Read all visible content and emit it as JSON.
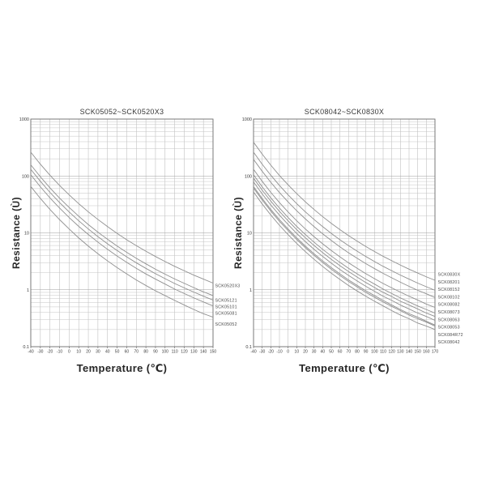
{
  "page": {
    "background": "#ffffff"
  },
  "chart_data": [
    {
      "type": "line",
      "title": "SCK05052~SCK0520X3",
      "xlabel": "Temperature (℃)",
      "ylabel": "Resistance (Ù)",
      "yscale": "log",
      "grid": true,
      "legend_position": "right-of-plot",
      "line_color": "#8f8f8f",
      "xlim": [
        -40,
        150
      ],
      "ylim": [
        0.1,
        1000
      ],
      "x": [
        -40,
        -30,
        -20,
        -10,
        0,
        10,
        20,
        30,
        40,
        50,
        60,
        70,
        80,
        90,
        100,
        110,
        120,
        130,
        140,
        150
      ],
      "xtick_labels": [
        "-40",
        "-30",
        "-20",
        "-10",
        "0",
        "10",
        "20",
        "30",
        "40",
        "50",
        "60",
        "70",
        "80",
        "90",
        "100",
        "110",
        "120",
        "130",
        "140",
        "150"
      ],
      "ytick_values": [
        1000,
        100,
        10,
        1,
        0.1
      ],
      "ytick_labels": [
        "1000",
        "100",
        "10",
        "1",
        "0.1"
      ],
      "series": [
        {
          "name": "SCK0520X3",
          "r25_ohm": 20,
          "values": [
            262,
            161,
            103,
            68.2,
            46.6,
            32.6,
            23.4,
            17.2,
            12.9,
            9.8,
            7.58,
            5.96,
            4.76,
            3.84,
            3.14,
            2.58,
            2.16,
            1.81,
            1.54,
            1.31
          ]
        },
        {
          "name": "SCK05121",
          "r25_ohm": 12,
          "values": [
            157,
            96.7,
            61.8,
            40.9,
            28.0,
            19.6,
            14.0,
            10.3,
            7.72,
            5.88,
            4.55,
            3.58,
            2.86,
            2.3,
            1.88,
            1.55,
            1.3,
            1.09,
            0.92,
            0.79
          ]
        },
        {
          "name": "SCK05101",
          "r25_ohm": 10,
          "values": [
            131,
            80.6,
            51.5,
            34.1,
            23.3,
            16.3,
            11.7,
            8.59,
            6.43,
            4.9,
            3.79,
            2.98,
            2.38,
            1.92,
            1.57,
            1.29,
            1.08,
            0.91,
            0.77,
            0.66
          ]
        },
        {
          "name": "SCK05081",
          "r25_ohm": 8,
          "values": [
            105,
            64.5,
            41.2,
            27.3,
            18.6,
            13.0,
            9.36,
            6.87,
            5.14,
            3.92,
            3.03,
            2.38,
            1.9,
            1.54,
            1.26,
            1.03,
            0.86,
            0.72,
            0.61,
            0.52
          ]
        },
        {
          "name": "SCK05052",
          "r25_ohm": 5,
          "values": [
            65.4,
            40.3,
            25.8,
            17.1,
            11.7,
            8.15,
            5.85,
            4.3,
            3.22,
            2.45,
            1.9,
            1.49,
            1.19,
            0.96,
            0.79,
            0.65,
            0.54,
            0.45,
            0.38,
            0.33
          ]
        }
      ]
    },
    {
      "type": "line",
      "title": "SCK08042~SCK0830X",
      "xlabel": "Temperature (℃)",
      "ylabel": "Resistance (Ù)",
      "yscale": "log",
      "grid": true,
      "legend_position": "right-of-plot",
      "line_color": "#8f8f8f",
      "xlim": [
        -40,
        170
      ],
      "ylim": [
        0.1,
        1000
      ],
      "x": [
        -40,
        -30,
        -20,
        -10,
        0,
        10,
        20,
        30,
        40,
        50,
        60,
        70,
        80,
        90,
        100,
        110,
        120,
        130,
        140,
        150,
        160,
        170
      ],
      "xtick_labels": [
        "-40",
        "-30",
        "-20",
        "-10",
        "0",
        "10",
        "20",
        "30",
        "40",
        "50",
        "60",
        "70",
        "80",
        "90",
        "100",
        "110",
        "120",
        "130",
        "140",
        "150",
        "160",
        "170"
      ],
      "ytick_values": [
        1000,
        100,
        10,
        1,
        0.1
      ],
      "ytick_labels": [
        "1000",
        "100",
        "10",
        "1",
        "0.1"
      ],
      "series": [
        {
          "name": "SCK0830X",
          "r25_ohm": 30,
          "values": [
            392,
            242,
            155,
            102,
            69.8,
            48.9,
            35.1,
            25.8,
            19.3,
            14.7,
            11.4,
            8.94,
            7.14,
            5.76,
            4.71,
            3.87,
            3.24,
            2.72,
            2.3,
            1.97,
            1.69,
            1.47
          ]
        },
        {
          "name": "SCK08201",
          "r25_ohm": 20,
          "values": [
            262,
            161,
            103,
            68.2,
            46.6,
            32.6,
            23.4,
            17.2,
            12.9,
            9.8,
            7.58,
            5.96,
            4.76,
            3.84,
            3.14,
            2.58,
            2.16,
            1.81,
            1.54,
            1.31,
            1.13,
            0.98
          ]
        },
        {
          "name": "SCK08152",
          "r25_ohm": 15,
          "values": [
            196,
            121,
            77.3,
            51.2,
            35.0,
            24.5,
            17.6,
            12.9,
            9.65,
            7.35,
            5.69,
            4.47,
            3.57,
            2.88,
            2.36,
            1.94,
            1.62,
            1.36,
            1.15,
            0.98,
            0.85,
            0.73
          ]
        },
        {
          "name": "SCK08102",
          "r25_ohm": 10,
          "values": [
            131,
            80.6,
            51.5,
            34.1,
            23.3,
            16.3,
            11.7,
            8.59,
            6.43,
            4.9,
            3.79,
            2.98,
            2.38,
            1.92,
            1.57,
            1.29,
            1.08,
            0.91,
            0.77,
            0.66,
            0.56,
            0.49
          ]
        },
        {
          "name": "SCK08082",
          "r25_ohm": 8,
          "values": [
            105,
            64.5,
            41.2,
            27.3,
            18.6,
            13.0,
            9.36,
            6.87,
            5.14,
            3.92,
            3.03,
            2.38,
            1.9,
            1.54,
            1.26,
            1.03,
            0.86,
            0.72,
            0.61,
            0.52,
            0.45,
            0.39
          ]
        },
        {
          "name": "SCK08073",
          "r25_ohm": 7,
          "values": [
            91.6,
            56.4,
            36.1,
            23.9,
            16.3,
            11.4,
            8.19,
            6.01,
            4.5,
            3.43,
            2.65,
            2.09,
            1.67,
            1.34,
            1.1,
            0.9,
            0.76,
            0.63,
            0.54,
            0.46,
            0.39,
            0.34
          ]
        },
        {
          "name": "SCK08063",
          "r25_ohm": 6,
          "values": [
            78.5,
            48.4,
            30.9,
            20.5,
            14.0,
            9.78,
            7.02,
            5.15,
            3.86,
            2.94,
            2.27,
            1.79,
            1.43,
            1.15,
            0.94,
            0.77,
            0.65,
            0.54,
            0.46,
            0.39,
            0.34,
            0.29
          ]
        },
        {
          "name": "SCK08053",
          "r25_ohm": 5,
          "values": [
            65.4,
            40.3,
            25.8,
            17.1,
            11.7,
            8.15,
            5.85,
            4.3,
            3.22,
            2.45,
            1.9,
            1.49,
            1.19,
            0.96,
            0.79,
            0.65,
            0.54,
            0.45,
            0.38,
            0.33,
            0.28,
            0.24
          ]
        },
        {
          "name": "SCK084R72",
          "r25_ohm": 4.7,
          "values": [
            61.5,
            37.9,
            24.2,
            16.0,
            11.0,
            7.66,
            5.5,
            4.04,
            3.02,
            2.3,
            1.78,
            1.4,
            1.12,
            0.9,
            0.74,
            0.61,
            0.51,
            0.43,
            0.36,
            0.31,
            0.27,
            0.23
          ]
        },
        {
          "name": "SCK08042",
          "r25_ohm": 4,
          "values": [
            52.3,
            32.2,
            20.6,
            13.6,
            9.3,
            6.52,
            4.68,
            3.44,
            2.57,
            1.96,
            1.52,
            1.19,
            0.95,
            0.77,
            0.63,
            0.52,
            0.43,
            0.36,
            0.31,
            0.26,
            0.23,
            0.2
          ]
        }
      ]
    }
  ]
}
